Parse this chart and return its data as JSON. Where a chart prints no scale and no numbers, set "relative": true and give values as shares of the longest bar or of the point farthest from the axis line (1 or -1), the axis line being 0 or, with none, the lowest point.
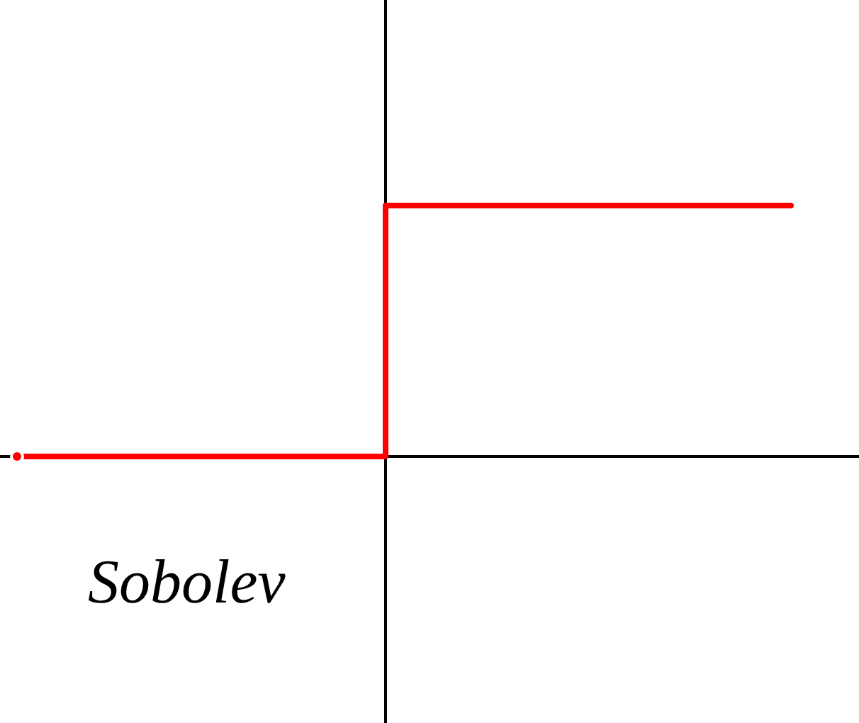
{
  "chart_data": {
    "type": "step",
    "relative": true,
    "categories": [
      null,
      null,
      null,
      null,
      null,
      null,
      null,
      null,
      null,
      null,
      null,
      null,
      null,
      null,
      null,
      null,
      null,
      null,
      null,
      null,
      null,
      null
    ],
    "values": [
      0,
      0,
      0,
      0,
      0,
      0,
      0,
      0,
      0,
      0,
      1,
      1,
      1,
      1,
      1,
      1,
      1,
      1,
      1,
      1,
      1,
      1
    ],
    "color": "#ff0000",
    "annotations": [
      "Sobolev"
    ]
  }
}
